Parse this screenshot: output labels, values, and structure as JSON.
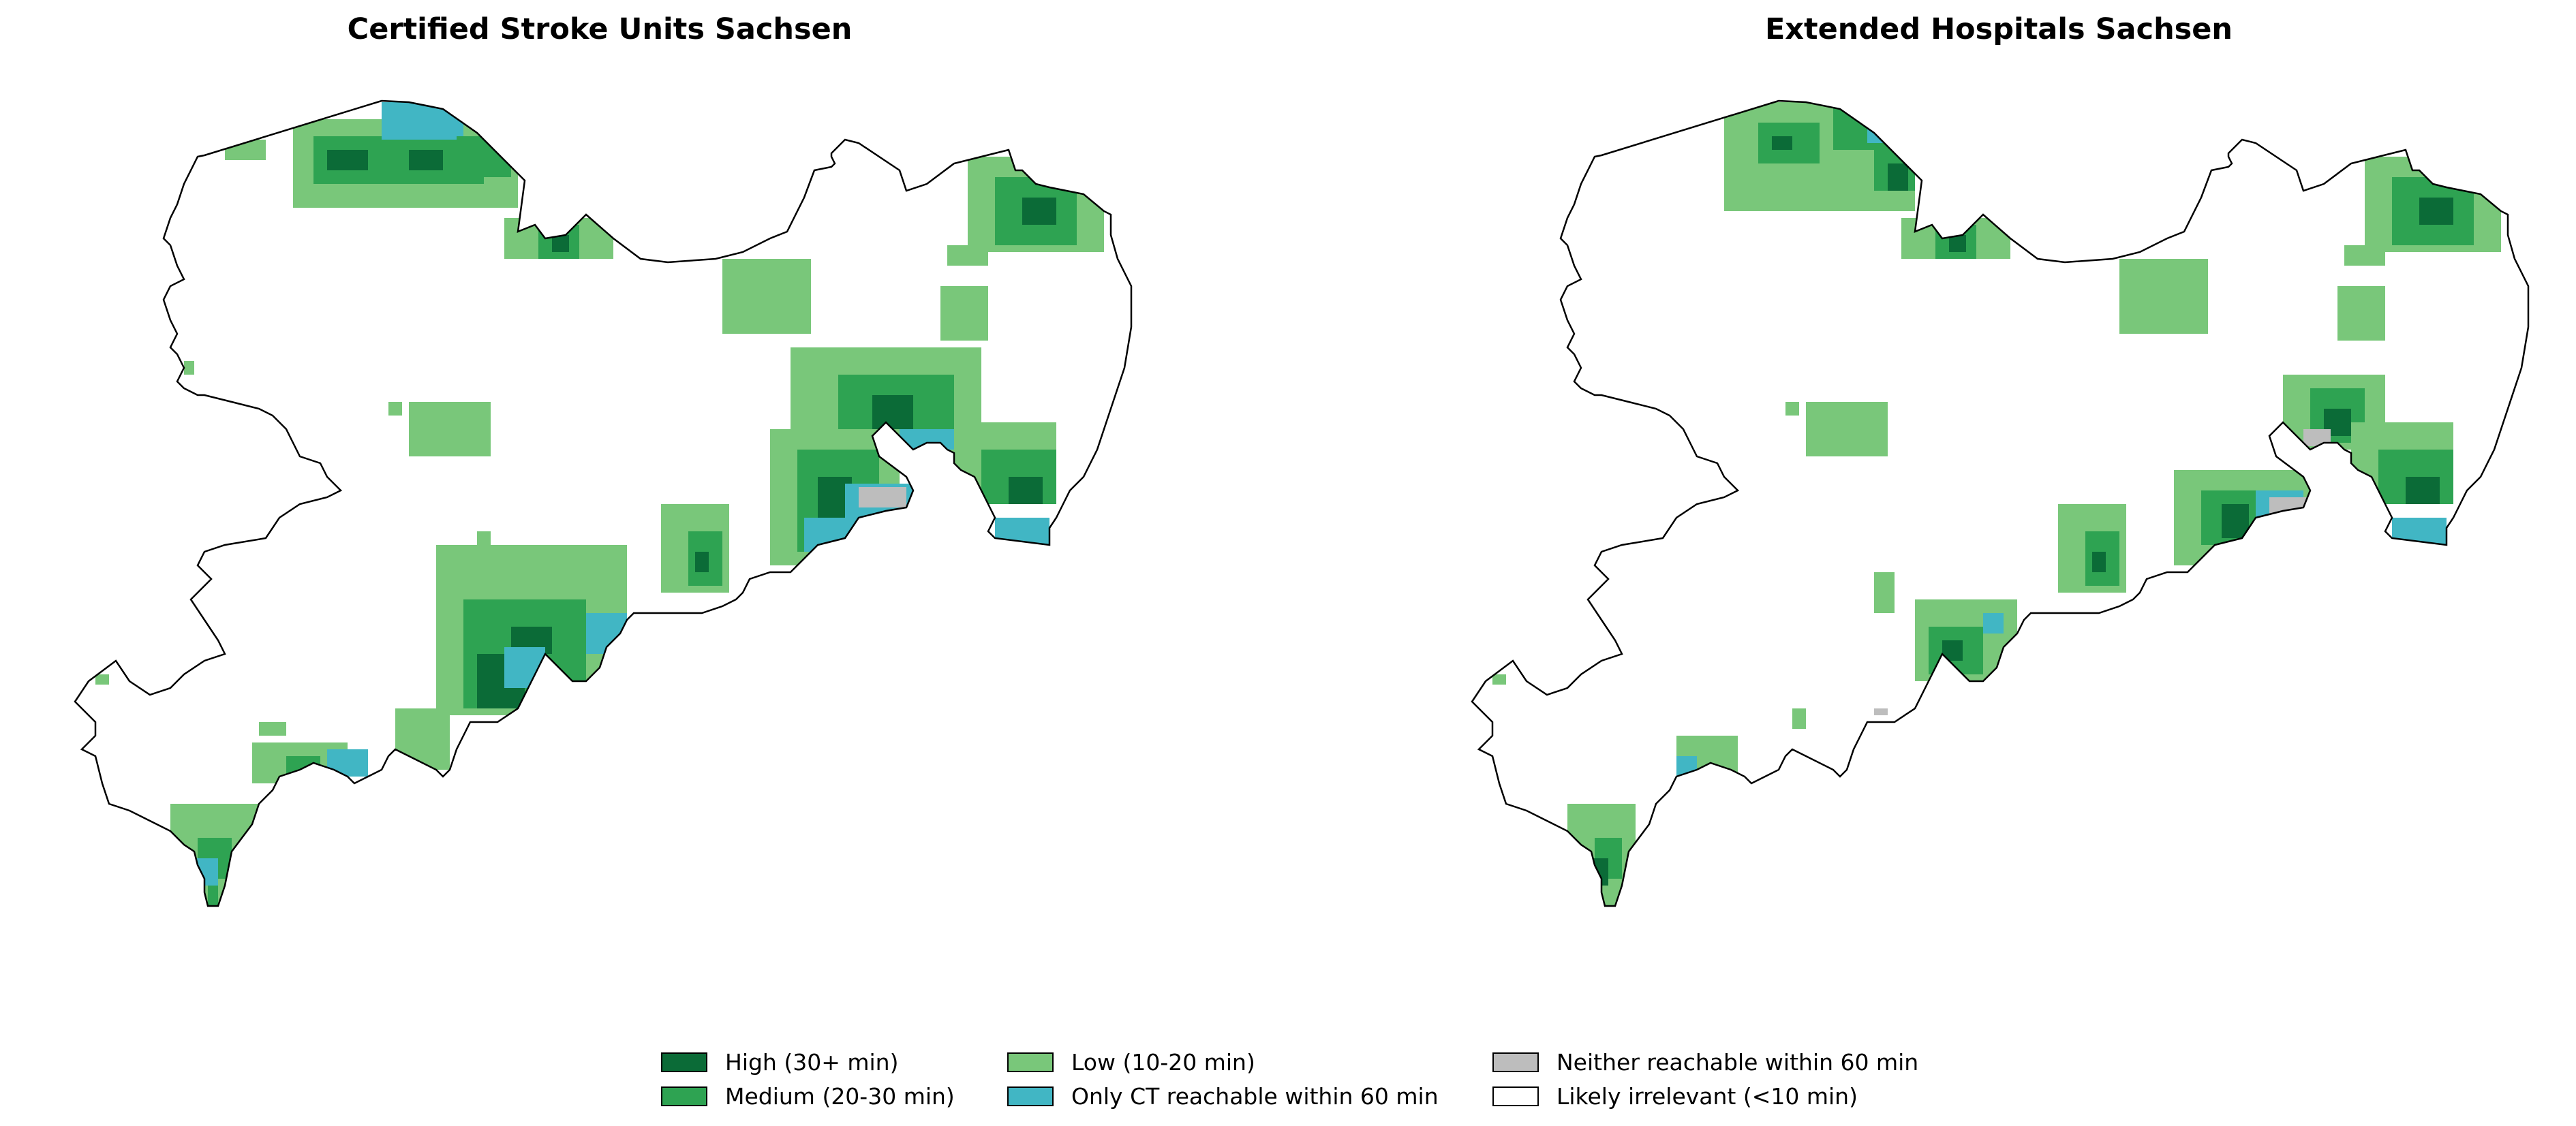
{
  "panels": [
    {
      "title": "Certified Stroke Units Sachsen"
    },
    {
      "title": "Extended Hospitals Sachsen"
    }
  ],
  "colors": {
    "high": "#0b6b37",
    "medium": "#2ea352",
    "low": "#79c77a",
    "only_ct": "#41b6c4",
    "neither": "#bdbdbd",
    "irrelevant": "#ffffff",
    "outline": "#000000"
  },
  "legend": [
    {
      "label": "High (30+ min)",
      "color": "#0b6b37"
    },
    {
      "label": "Medium (20-30 min)",
      "color": "#2ea352"
    },
    {
      "label": "Low (10-20 min)",
      "color": "#79c77a"
    },
    {
      "label": "Only CT reachable within 60 min",
      "color": "#41b6c4"
    },
    {
      "label": "Neither reachable within 60 min",
      "color": "#bdbdbd"
    },
    {
      "label": "Likely irrelevant (<10 min)",
      "color": "#ffffff"
    }
  ]
}
